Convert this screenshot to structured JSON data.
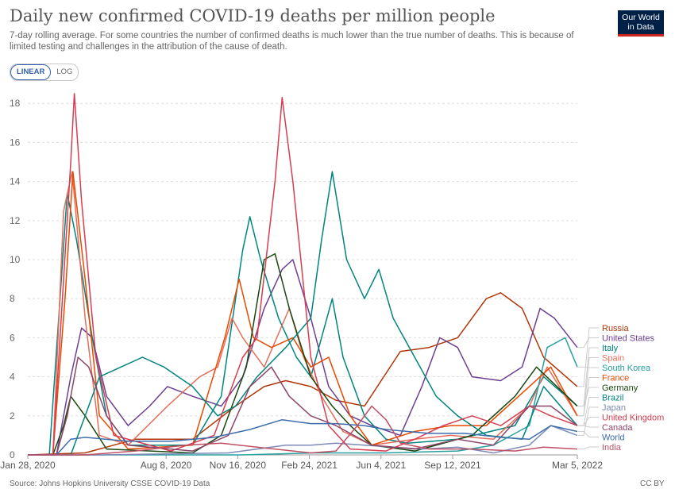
{
  "header": {
    "title": "Daily new confirmed COVID-19 deaths per million people",
    "subtitle": "7-day rolling average. For some countries the number of confirmed deaths is much lower than the true number of deaths. This is because of limited testing and challenges in the attribution of the cause of death.",
    "logo_line1": "Our World",
    "logo_line2": "in Data"
  },
  "controls": {
    "linear_label": "LINEAR",
    "log_label": "LOG",
    "selected": "LINEAR"
  },
  "footer": {
    "source": "Source: Johns Hopkins University CSSE COVID-19 Data",
    "license": "CC BY"
  },
  "chart_data": {
    "type": "line",
    "title": "Daily new confirmed COVID-19 deaths per million people",
    "y_ticks": [
      0,
      2,
      4,
      6,
      8,
      10,
      12,
      14,
      16,
      18
    ],
    "ylim": [
      0,
      18.7
    ],
    "x_ticks": [
      "Jan 28, 2020",
      "Aug 8, 2020",
      "Nov 16, 2020",
      "Feb 24, 2021",
      "Jun 4, 2021",
      "Sep 12, 2021",
      "Mar 5, 2022"
    ],
    "x_tick_days": [
      0,
      193,
      293,
      393,
      493,
      593,
      767
    ],
    "x_range_days": [
      0,
      767
    ],
    "grid": "horizontal dashed",
    "legend": "right",
    "series": [
      {
        "name": "Russia",
        "color": "#b13507",
        "points": [
          [
            0,
            0
          ],
          [
            80,
            0.1
          ],
          [
            150,
            0.8
          ],
          [
            230,
            0.8
          ],
          [
            290,
            2.5
          ],
          [
            330,
            3.5
          ],
          [
            360,
            3.8
          ],
          [
            395,
            3.5
          ],
          [
            430,
            2.8
          ],
          [
            470,
            2.5
          ],
          [
            520,
            5.3
          ],
          [
            560,
            5.5
          ],
          [
            600,
            6.0
          ],
          [
            640,
            8.0
          ],
          [
            660,
            8.3
          ],
          [
            690,
            7.5
          ],
          [
            720,
            5.0
          ],
          [
            767,
            3.5
          ]
        ]
      },
      {
        "name": "United States",
        "color": "#6d3e91",
        "points": [
          [
            0,
            0
          ],
          [
            40,
            0
          ],
          [
            60,
            4.0
          ],
          [
            75,
            6.5
          ],
          [
            90,
            6.0
          ],
          [
            110,
            3.0
          ],
          [
            140,
            1.5
          ],
          [
            170,
            2.5
          ],
          [
            195,
            3.5
          ],
          [
            230,
            3.0
          ],
          [
            270,
            2.5
          ],
          [
            300,
            4.0
          ],
          [
            330,
            7.5
          ],
          [
            355,
            9.5
          ],
          [
            370,
            10.0
          ],
          [
            395,
            7.0
          ],
          [
            420,
            3.5
          ],
          [
            450,
            2.0
          ],
          [
            480,
            1.5
          ],
          [
            520,
            1.0
          ],
          [
            550,
            3.5
          ],
          [
            575,
            6.0
          ],
          [
            600,
            5.5
          ],
          [
            620,
            4.0
          ],
          [
            660,
            3.8
          ],
          [
            690,
            4.5
          ],
          [
            715,
            7.5
          ],
          [
            735,
            7.0
          ],
          [
            767,
            5.5
          ]
        ]
      },
      {
        "name": "Italy",
        "color": "#00847e",
        "points": [
          [
            0,
            0
          ],
          [
            30,
            0
          ],
          [
            45,
            8.0
          ],
          [
            55,
            13.4
          ],
          [
            68,
            11.0
          ],
          [
            90,
            6.0
          ],
          [
            110,
            2.0
          ],
          [
            140,
            0.5
          ],
          [
            230,
            0.5
          ],
          [
            270,
            3.0
          ],
          [
            300,
            10.5
          ],
          [
            310,
            12.2
          ],
          [
            325,
            10.0
          ],
          [
            350,
            7.0
          ],
          [
            375,
            5.0
          ],
          [
            395,
            4.0
          ],
          [
            410,
            6.0
          ],
          [
            425,
            8.0
          ],
          [
            440,
            5.0
          ],
          [
            470,
            2.0
          ],
          [
            500,
            0.8
          ],
          [
            530,
            0.6
          ],
          [
            600,
            0.8
          ],
          [
            680,
            1.5
          ],
          [
            720,
            4.0
          ],
          [
            767,
            2.5
          ]
        ]
      },
      {
        "name": "Spain",
        "color": "#e56e5a",
        "points": [
          [
            0,
            0
          ],
          [
            35,
            0
          ],
          [
            50,
            12.5
          ],
          [
            62,
            14.5
          ],
          [
            80,
            7.0
          ],
          [
            100,
            1.0
          ],
          [
            140,
            0.5
          ],
          [
            195,
            2.5
          ],
          [
            240,
            4.0
          ],
          [
            265,
            4.5
          ],
          [
            285,
            7.0
          ],
          [
            300,
            6.0
          ],
          [
            330,
            4.5
          ],
          [
            365,
            7.5
          ],
          [
            385,
            5.0
          ],
          [
            410,
            3.0
          ],
          [
            440,
            1.2
          ],
          [
            480,
            0.5
          ],
          [
            540,
            0.8
          ],
          [
            590,
            1.0
          ],
          [
            650,
            0.8
          ],
          [
            700,
            2.5
          ],
          [
            725,
            4.5
          ],
          [
            767,
            2.0
          ]
        ]
      },
      {
        "name": "South Korea",
        "color": "#28a0a0",
        "points": [
          [
            0,
            0
          ],
          [
            80,
            0
          ],
          [
            300,
            0
          ],
          [
            400,
            0.1
          ],
          [
            500,
            0.1
          ],
          [
            600,
            0.2
          ],
          [
            650,
            0.5
          ],
          [
            700,
            1.5
          ],
          [
            725,
            5.5
          ],
          [
            750,
            6.0
          ],
          [
            767,
            4.5
          ]
        ]
      },
      {
        "name": "France",
        "color": "#e84900",
        "points": [
          [
            0,
            0
          ],
          [
            35,
            0
          ],
          [
            52,
            8.0
          ],
          [
            63,
            14.5
          ],
          [
            80,
            9.0
          ],
          [
            100,
            2.0
          ],
          [
            140,
            0.3
          ],
          [
            230,
            0.5
          ],
          [
            275,
            6.0
          ],
          [
            295,
            9.0
          ],
          [
            315,
            6.0
          ],
          [
            340,
            5.5
          ],
          [
            370,
            6.0
          ],
          [
            395,
            4.5
          ],
          [
            420,
            5.0
          ],
          [
            450,
            2.0
          ],
          [
            480,
            0.5
          ],
          [
            540,
            1.2
          ],
          [
            590,
            1.5
          ],
          [
            640,
            1.5
          ],
          [
            700,
            3.5
          ],
          [
            730,
            4.5
          ],
          [
            767,
            2.0
          ]
        ]
      },
      {
        "name": "Germany",
        "color": "#18470f",
        "points": [
          [
            0,
            0
          ],
          [
            35,
            0
          ],
          [
            50,
            1.5
          ],
          [
            60,
            3.0
          ],
          [
            80,
            2.0
          ],
          [
            110,
            0.3
          ],
          [
            230,
            0.1
          ],
          [
            270,
            1.0
          ],
          [
            305,
            4.5
          ],
          [
            330,
            10.0
          ],
          [
            345,
            10.3
          ],
          [
            365,
            7.5
          ],
          [
            395,
            4.0
          ],
          [
            425,
            2.5
          ],
          [
            450,
            1.5
          ],
          [
            480,
            0.5
          ],
          [
            540,
            0.2
          ],
          [
            620,
            1.0
          ],
          [
            680,
            3.0
          ],
          [
            710,
            4.5
          ],
          [
            767,
            2.5
          ]
        ]
      },
      {
        "name": "Brazil",
        "color": "#00847e",
        "points": [
          [
            0,
            0
          ],
          [
            60,
            0
          ],
          [
            80,
            2.0
          ],
          [
            100,
            4.0
          ],
          [
            130,
            4.5
          ],
          [
            160,
            5.0
          ],
          [
            190,
            4.5
          ],
          [
            230,
            3.5
          ],
          [
            265,
            2.0
          ],
          [
            290,
            2.5
          ],
          [
            320,
            4.0
          ],
          [
            360,
            5.5
          ],
          [
            395,
            7.0
          ],
          [
            410,
            11.0
          ],
          [
            425,
            14.5
          ],
          [
            445,
            10.0
          ],
          [
            470,
            8.0
          ],
          [
            490,
            9.5
          ],
          [
            510,
            7.0
          ],
          [
            540,
            5.0
          ],
          [
            570,
            3.0
          ],
          [
            600,
            2.0
          ],
          [
            640,
            1.0
          ],
          [
            690,
            0.8
          ],
          [
            720,
            3.5
          ],
          [
            767,
            1.5
          ]
        ]
      },
      {
        "name": "Japan",
        "color": "#7d8aba",
        "points": [
          [
            0,
            0
          ],
          [
            100,
            0
          ],
          [
            280,
            0.1
          ],
          [
            320,
            0.3
          ],
          [
            360,
            0.5
          ],
          [
            395,
            0.5
          ],
          [
            430,
            0.6
          ],
          [
            470,
            0.5
          ],
          [
            550,
            0.3
          ],
          [
            600,
            0.4
          ],
          [
            650,
            0.1
          ],
          [
            700,
            0.5
          ],
          [
            730,
            1.5
          ],
          [
            767,
            1.0
          ]
        ]
      },
      {
        "name": "United Kingdom",
        "color": "#d73c50",
        "points": [
          [
            0,
            0
          ],
          [
            35,
            0
          ],
          [
            50,
            9.0
          ],
          [
            60,
            15.0
          ],
          [
            65,
            18.5
          ],
          [
            75,
            13.0
          ],
          [
            95,
            5.0
          ],
          [
            120,
            1.0
          ],
          [
            200,
            0.2
          ],
          [
            260,
            1.0
          ],
          [
            300,
            5.0
          ],
          [
            320,
            6.0
          ],
          [
            345,
            14.0
          ],
          [
            355,
            18.3
          ],
          [
            370,
            14.0
          ],
          [
            395,
            5.0
          ],
          [
            420,
            1.5
          ],
          [
            450,
            0.3
          ],
          [
            500,
            0.2
          ],
          [
            540,
            0.8
          ],
          [
            580,
            1.5
          ],
          [
            620,
            2.0
          ],
          [
            660,
            1.5
          ],
          [
            700,
            2.5
          ],
          [
            730,
            2.0
          ],
          [
            767,
            1.5
          ]
        ]
      },
      {
        "name": "Canada",
        "color": "#8c4569",
        "points": [
          [
            0,
            0
          ],
          [
            40,
            0
          ],
          [
            55,
            2.0
          ],
          [
            70,
            5.0
          ],
          [
            85,
            4.5
          ],
          [
            110,
            2.0
          ],
          [
            140,
            0.5
          ],
          [
            230,
            0.2
          ],
          [
            280,
            1.0
          ],
          [
            310,
            3.5
          ],
          [
            340,
            4.5
          ],
          [
            365,
            3.0
          ],
          [
            395,
            2.0
          ],
          [
            430,
            1.5
          ],
          [
            480,
            0.5
          ],
          [
            540,
            0.3
          ],
          [
            600,
            0.8
          ],
          [
            650,
            0.5
          ],
          [
            700,
            2.5
          ],
          [
            730,
            2.5
          ],
          [
            767,
            1.5
          ]
        ]
      },
      {
        "name": "World",
        "color": "#3d6dad",
        "points": [
          [
            0,
            0
          ],
          [
            40,
            0
          ],
          [
            60,
            0.8
          ],
          [
            80,
            0.9
          ],
          [
            140,
            0.7
          ],
          [
            200,
            0.7
          ],
          [
            260,
            0.9
          ],
          [
            310,
            1.3
          ],
          [
            355,
            1.8
          ],
          [
            395,
            1.6
          ],
          [
            430,
            1.6
          ],
          [
            470,
            1.5
          ],
          [
            500,
            1.3
          ],
          [
            560,
            1.1
          ],
          [
            610,
            1.1
          ],
          [
            660,
            0.9
          ],
          [
            700,
            0.8
          ],
          [
            730,
            1.5
          ],
          [
            767,
            1.2
          ]
        ]
      },
      {
        "name": "India",
        "color": "#c15065",
        "points": [
          [
            0,
            0
          ],
          [
            80,
            0
          ],
          [
            150,
            0.2
          ],
          [
            220,
            0.5
          ],
          [
            270,
            0.6
          ],
          [
            320,
            0.4
          ],
          [
            395,
            0.1
          ],
          [
            430,
            0.2
          ],
          [
            460,
            1.5
          ],
          [
            480,
            2.5
          ],
          [
            500,
            1.8
          ],
          [
            520,
            0.6
          ],
          [
            560,
            0.3
          ],
          [
            620,
            0.3
          ],
          [
            680,
            0.2
          ],
          [
            720,
            0.4
          ],
          [
            767,
            0.3
          ]
        ]
      }
    ]
  }
}
